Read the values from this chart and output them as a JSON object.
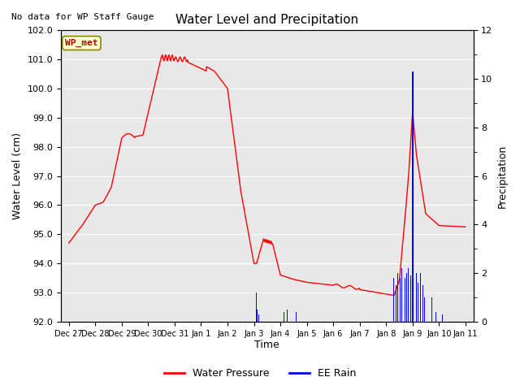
{
  "title": "Water Level and Precipitation",
  "top_left_text": "No data for WP Staff Gauge",
  "ylabel_left": "Water Level (cm)",
  "ylabel_right": "Precipitation",
  "xlabel": "Time",
  "ylim_left": [
    92.0,
    102.0
  ],
  "ylim_right": [
    0,
    12
  ],
  "bg_color": "#e8e8e8",
  "fig_color": "#ffffff",
  "legend_entries": [
    "Water Pressure",
    "EE Rain"
  ],
  "wp_label": "WP_met",
  "wp_label_fg": "#aa0000",
  "wp_label_bg": "#ffffcc",
  "wp_label_border": "#888800",
  "tick_labels": [
    "Dec 27",
    "Dec 28",
    "Dec 29",
    "Dec 30",
    "Dec 31",
    "Jan 1",
    "Jan 2",
    "Jan 3",
    "Jan 4",
    "Jan 5",
    "Jan 6",
    "Jan 7",
    "Jan 8",
    "Jan 9",
    "Jan 10",
    "Jan 11"
  ]
}
